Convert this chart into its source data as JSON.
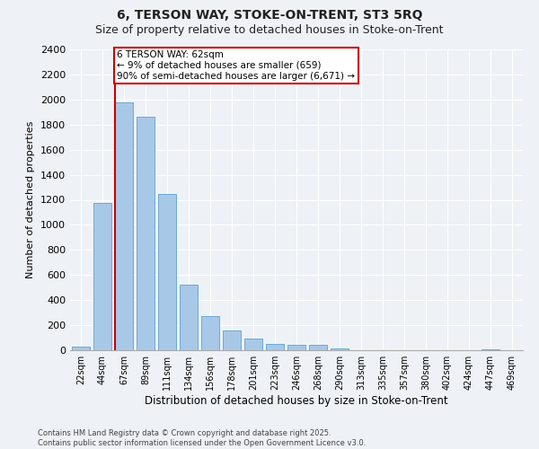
{
  "title": "6, TERSON WAY, STOKE-ON-TRENT, ST3 5RQ",
  "subtitle": "Size of property relative to detached houses in Stoke-on-Trent",
  "xlabel": "Distribution of detached houses by size in Stoke-on-Trent",
  "ylabel": "Number of detached properties",
  "categories": [
    "22sqm",
    "44sqm",
    "67sqm",
    "89sqm",
    "111sqm",
    "134sqm",
    "156sqm",
    "178sqm",
    "201sqm",
    "223sqm",
    "246sqm",
    "268sqm",
    "290sqm",
    "313sqm",
    "335sqm",
    "357sqm",
    "380sqm",
    "402sqm",
    "424sqm",
    "447sqm",
    "469sqm"
  ],
  "values": [
    30,
    1175,
    1975,
    1860,
    1250,
    525,
    275,
    155,
    90,
    50,
    40,
    40,
    15,
    0,
    0,
    0,
    0,
    0,
    0,
    10,
    0
  ],
  "bar_color": "#a8c8e8",
  "bar_edge_color": "#6aaad4",
  "vline_index": 2,
  "vline_color": "#cc0000",
  "annotation_text": "6 TERSON WAY: 62sqm\n← 9% of detached houses are smaller (659)\n90% of semi-detached houses are larger (6,671) →",
  "annotation_box_color": "#ffffff",
  "annotation_box_edge": "#cc0000",
  "ylim": [
    0,
    2400
  ],
  "yticks": [
    0,
    200,
    400,
    600,
    800,
    1000,
    1200,
    1400,
    1600,
    1800,
    2000,
    2200,
    2400
  ],
  "bg_color": "#eef2f7",
  "grid_color": "#ffffff",
  "footer1": "Contains HM Land Registry data © Crown copyright and database right 2025.",
  "footer2": "Contains public sector information licensed under the Open Government Licence v3.0.",
  "title_fontsize": 10,
  "subtitle_fontsize": 9,
  "ylabel_text": "Number of detached properties"
}
